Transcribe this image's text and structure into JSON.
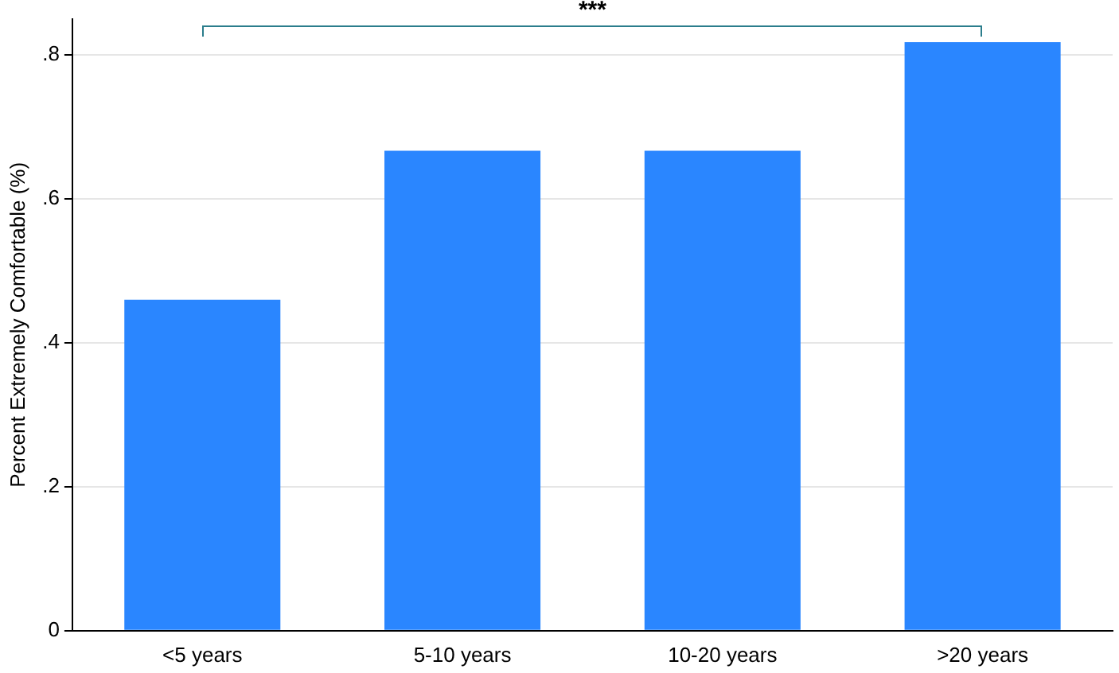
{
  "chart_data": {
    "type": "bar",
    "ylabel": "Percent Extremely Comfortable (%)",
    "categories": [
      "<5 years",
      "5-10 years",
      "10-20 years",
      ">20 years"
    ],
    "values": [
      0.46,
      0.667,
      0.667,
      0.818
    ],
    "color": "#2a86ff",
    "ylim": [
      0,
      0.85
    ],
    "yticks": [
      {
        "value": 0,
        "label": "0"
      },
      {
        "value": 0.2,
        "label": ".2"
      },
      {
        "value": 0.4,
        "label": ".4"
      },
      {
        "value": 0.6,
        "label": ".6"
      },
      {
        "value": 0.8,
        "label": ".8"
      }
    ],
    "grid": "y",
    "annotations": [
      "***"
    ]
  }
}
